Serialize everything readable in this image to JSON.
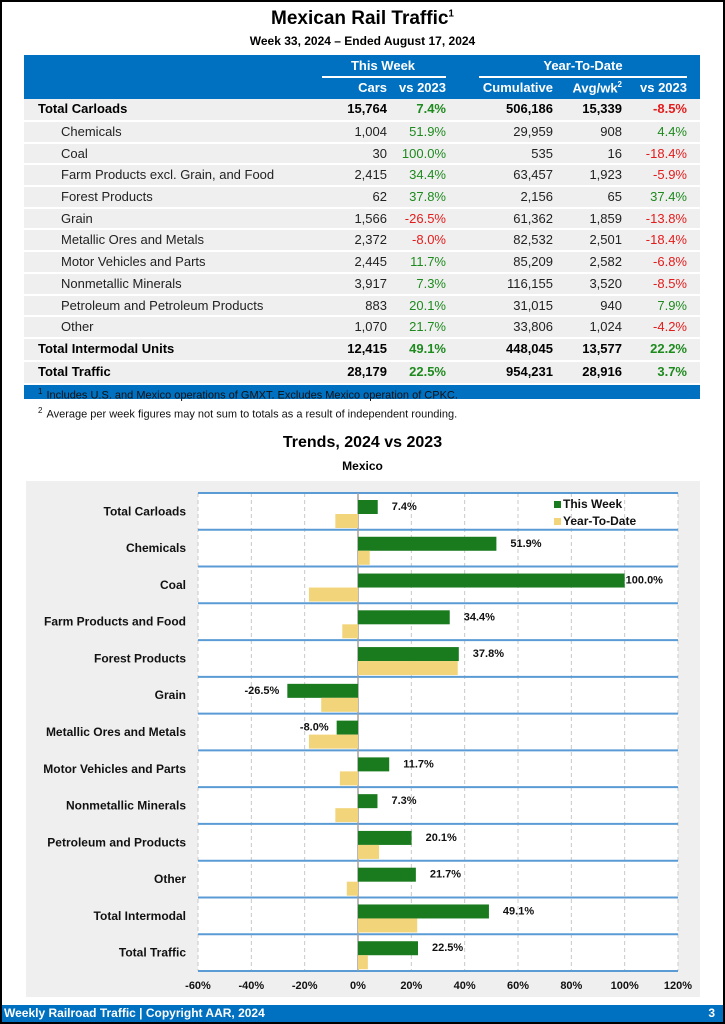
{
  "header": {
    "title": "Mexican Rail Traffic",
    "title_footnote": "1",
    "subtitle": "Week 33, 2024 – Ended August 17, 2024"
  },
  "table": {
    "group_headers": [
      "This Week",
      "Year-To-Date"
    ],
    "columns": [
      "Cars",
      "vs 2023",
      "Cumulative",
      "Avg/wk",
      "vs 2023"
    ],
    "avg_footnote": "2",
    "rows": [
      {
        "label": "Total Carloads",
        "type": "bold",
        "cars": "15,764",
        "wk_vs": "7.4%",
        "cum": "506,186",
        "avg": "15,339",
        "ytd_vs": "-8.5%"
      },
      {
        "label": "Chemicals",
        "type": "sub",
        "cars": "1,004",
        "wk_vs": "51.9%",
        "cum": "29,959",
        "avg": "908",
        "ytd_vs": "4.4%"
      },
      {
        "label": "Coal",
        "type": "sub",
        "cars": "30",
        "wk_vs": "100.0%",
        "cum": "535",
        "avg": "16",
        "ytd_vs": "-18.4%"
      },
      {
        "label": "Farm Products excl. Grain, and Food",
        "type": "sub",
        "cars": "2,415",
        "wk_vs": "34.4%",
        "cum": "63,457",
        "avg": "1,923",
        "ytd_vs": "-5.9%"
      },
      {
        "label": "Forest Products",
        "type": "sub",
        "cars": "62",
        "wk_vs": "37.8%",
        "cum": "2,156",
        "avg": "65",
        "ytd_vs": "37.4%"
      },
      {
        "label": "Grain",
        "type": "sub",
        "cars": "1,566",
        "wk_vs": "-26.5%",
        "cum": "61,362",
        "avg": "1,859",
        "ytd_vs": "-13.8%"
      },
      {
        "label": "Metallic Ores and Metals",
        "type": "sub",
        "cars": "2,372",
        "wk_vs": "-8.0%",
        "cum": "82,532",
        "avg": "2,501",
        "ytd_vs": "-18.4%"
      },
      {
        "label": "Motor Vehicles and Parts",
        "type": "sub",
        "cars": "2,445",
        "wk_vs": "11.7%",
        "cum": "85,209",
        "avg": "2,582",
        "ytd_vs": "-6.8%"
      },
      {
        "label": "Nonmetallic Minerals",
        "type": "sub",
        "cars": "3,917",
        "wk_vs": "7.3%",
        "cum": "116,155",
        "avg": "3,520",
        "ytd_vs": "-8.5%"
      },
      {
        "label": "Petroleum and Petroleum Products",
        "type": "sub",
        "cars": "883",
        "wk_vs": "20.1%",
        "cum": "31,015",
        "avg": "940",
        "ytd_vs": "7.9%"
      },
      {
        "label": "Other",
        "type": "sub",
        "cars": "1,070",
        "wk_vs": "21.7%",
        "cum": "33,806",
        "avg": "1,024",
        "ytd_vs": "-4.2%"
      },
      {
        "label": "Total Intermodal Units",
        "type": "bold",
        "cars": "12,415",
        "wk_vs": "49.1%",
        "cum": "448,045",
        "avg": "13,577",
        "ytd_vs": "22.2%"
      },
      {
        "label": "Total Traffic",
        "type": "bold",
        "cars": "28,179",
        "wk_vs": "22.5%",
        "cum": "954,231",
        "avg": "28,916",
        "ytd_vs": "3.7%"
      }
    ]
  },
  "notes": [
    {
      "mark": "1",
      "text": "Includes U.S. and Mexico operations of GMXT. Excludes Mexico operation of CPKC."
    },
    {
      "mark": "2",
      "text": "Average per week figures may not sum to totals as a result of independent rounding."
    }
  ],
  "colors": {
    "brand_blue": "#0070c0",
    "positive": "#1e8a1e",
    "negative": "#e41b1b",
    "this_week_bar": "#1a7a1e",
    "ytd_bar": "#f2d57a"
  },
  "chart_data": {
    "type": "bar",
    "orientation": "horizontal",
    "title": "Trends, 2024 vs 2023",
    "subtitle": "Mexico",
    "categories": [
      "Total Carloads",
      "Chemicals",
      "Coal",
      "Farm Products and Food",
      "Forest Products",
      "Grain",
      "Metallic Ores and Metals",
      "Motor Vehicles and Parts",
      "Nonmetallic Minerals",
      "Petroleum and Products",
      "Other",
      "Total Intermodal",
      "Total Traffic"
    ],
    "series": [
      {
        "name": "This Week",
        "color": "#1a7a1e",
        "values": [
          7.4,
          51.9,
          100.0,
          34.4,
          37.8,
          -26.5,
          -8.0,
          11.7,
          7.3,
          20.1,
          21.7,
          49.1,
          22.5
        ],
        "labels": [
          "7.4%",
          "51.9%",
          "100.0%",
          "34.4%",
          "37.8%",
          "-26.5%",
          "-8.0%",
          "11.7%",
          "7.3%",
          "20.1%",
          "21.7%",
          "49.1%",
          "22.5%"
        ]
      },
      {
        "name": "Year-To-Date",
        "color": "#f2d57a",
        "values": [
          -8.5,
          4.4,
          -18.4,
          -5.9,
          37.4,
          -13.8,
          -18.4,
          -6.8,
          -8.5,
          7.9,
          -4.2,
          22.2,
          3.7
        ]
      }
    ],
    "xlim": [
      -60,
      120
    ],
    "xticks": [
      "-60%",
      "-40%",
      "-20%",
      "0%",
      "20%",
      "40%",
      "60%",
      "80%",
      "100%",
      "120%"
    ],
    "xtick_values": [
      -60,
      -40,
      -20,
      0,
      20,
      40,
      60,
      80,
      100,
      120
    ],
    "grid": true,
    "legend": "top-right"
  },
  "footer": {
    "left": "Weekly Railroad Traffic | Copyright AAR, 2024",
    "page": "3"
  }
}
